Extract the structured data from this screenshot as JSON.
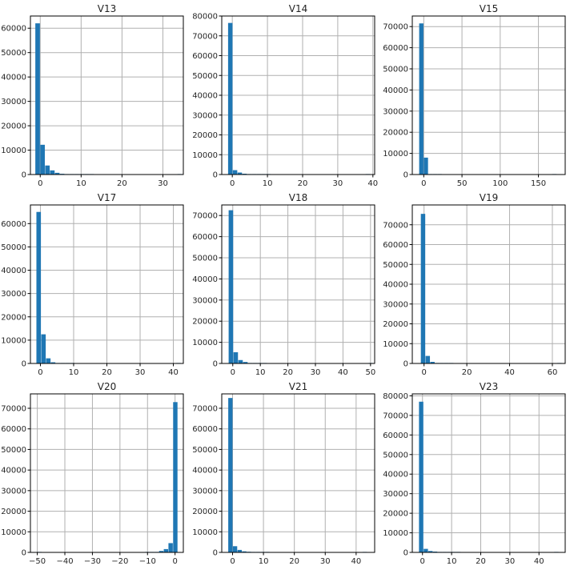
{
  "chart_data": [
    {
      "type": "bar",
      "title": "V13",
      "xlim": [
        -2.4,
        35
      ],
      "ylim": [
        0,
        65000
      ],
      "xticks": [
        0,
        10,
        20,
        30
      ],
      "yticks": [
        0,
        10000,
        20000,
        30000,
        40000,
        50000,
        60000
      ],
      "bin_start": -1.2,
      "bin_width": 1.2,
      "values": [
        62000,
        12200,
        3700,
        1700,
        700,
        300,
        100,
        50,
        20,
        10,
        5,
        5,
        0,
        0,
        0,
        0,
        0,
        0,
        0,
        0,
        0,
        0,
        0,
        0,
        0,
        0,
        0,
        0,
        0,
        1
      ],
      "grid": true
    },
    {
      "type": "bar",
      "title": "V14",
      "xlim": [
        -3,
        40.5
      ],
      "ylim": [
        0,
        80000
      ],
      "xticks": [
        0,
        10,
        20,
        30,
        40
      ],
      "yticks": [
        0,
        10000,
        20000,
        30000,
        40000,
        50000,
        60000,
        70000,
        80000
      ],
      "bin_start": -1.2,
      "bin_width": 1.35,
      "values": [
        76500,
        2200,
        1000,
        400,
        100,
        40,
        20,
        10,
        5,
        0,
        0,
        0,
        0,
        0,
        0,
        0,
        0,
        0,
        0,
        0,
        0,
        0,
        0,
        0,
        0,
        0,
        0,
        0,
        0,
        1
      ],
      "grid": true
    },
    {
      "type": "bar",
      "title": "V15",
      "xlim": [
        -15,
        185
      ],
      "ylim": [
        0,
        75000
      ],
      "xticks": [
        0,
        50,
        100,
        150
      ],
      "yticks": [
        0,
        10000,
        20000,
        30000,
        40000,
        50000,
        60000,
        70000
      ],
      "bin_start": -6,
      "bin_width": 6,
      "values": [
        71500,
        8000,
        150,
        20,
        5,
        0,
        0,
        0,
        0,
        0,
        0,
        0,
        0,
        0,
        0,
        0,
        0,
        0,
        0,
        0,
        0,
        0,
        0,
        0,
        0,
        0,
        0,
        0,
        0,
        1
      ],
      "grid": true
    },
    {
      "type": "bar",
      "title": "V17",
      "xlim": [
        -3,
        43
      ],
      "ylim": [
        0,
        68000
      ],
      "xticks": [
        0,
        10,
        20,
        30,
        40
      ],
      "yticks": [
        0,
        10000,
        20000,
        30000,
        40000,
        50000,
        60000
      ],
      "bin_start": -1.2,
      "bin_width": 1.45,
      "values": [
        65000,
        12500,
        2200,
        500,
        150,
        50,
        20,
        10,
        0,
        0,
        0,
        0,
        0,
        0,
        0,
        0,
        0,
        0,
        0,
        0,
        0,
        0,
        0,
        0,
        0,
        0,
        0,
        0,
        0,
        1
      ],
      "grid": true
    },
    {
      "type": "bar",
      "title": "V18",
      "xlim": [
        -4,
        51.5
      ],
      "ylim": [
        0,
        75000
      ],
      "xticks": [
        0,
        10,
        20,
        30,
        40,
        50
      ],
      "yticks": [
        0,
        10000,
        20000,
        30000,
        40000,
        50000,
        60000,
        70000
      ],
      "bin_start": -1.5,
      "bin_width": 1.75,
      "values": [
        72500,
        5300,
        1600,
        700,
        200,
        60,
        20,
        10,
        0,
        0,
        0,
        0,
        0,
        0,
        0,
        0,
        0,
        0,
        0,
        0,
        0,
        0,
        0,
        0,
        0,
        0,
        0,
        0,
        0,
        1
      ],
      "grid": true
    },
    {
      "type": "bar",
      "title": "V19",
      "xlim": [
        -5.5,
        66
      ],
      "ylim": [
        0,
        80000
      ],
      "xticks": [
        0,
        20,
        40,
        60
      ],
      "yticks": [
        0,
        10000,
        20000,
        30000,
        40000,
        50000,
        60000,
        70000
      ],
      "bin_start": -1.5,
      "bin_width": 2.2,
      "values": [
        75500,
        3800,
        800,
        250,
        60,
        20,
        10,
        0,
        0,
        0,
        0,
        0,
        0,
        0,
        0,
        0,
        0,
        0,
        0,
        0,
        0,
        0,
        0,
        0,
        0,
        0,
        0,
        0,
        0,
        1
      ],
      "grid": true
    },
    {
      "type": "bar",
      "title": "V20",
      "xlim": [
        -52.5,
        3
      ],
      "ylim": [
        0,
        77000
      ],
      "xticks": [
        -50,
        -40,
        -30,
        -20,
        -10,
        0
      ],
      "yticks": [
        0,
        10000,
        20000,
        30000,
        40000,
        50000,
        60000,
        70000
      ],
      "bin_start": -50,
      "bin_width": 1.7,
      "values": [
        5,
        0,
        0,
        0,
        0,
        0,
        0,
        0,
        0,
        0,
        0,
        0,
        0,
        0,
        0,
        0,
        0,
        0,
        0,
        0,
        0,
        0,
        0,
        10,
        50,
        200,
        700,
        1600,
        4500,
        73000
      ],
      "grid": true
    },
    {
      "type": "bar",
      "title": "V21",
      "xlim": [
        -3.5,
        46
      ],
      "ylim": [
        0,
        77000
      ],
      "xticks": [
        0,
        10,
        20,
        30,
        40
      ],
      "yticks": [
        0,
        10000,
        20000,
        30000,
        40000,
        50000,
        60000,
        70000
      ],
      "bin_start": -1.4,
      "bin_width": 1.5,
      "values": [
        75000,
        3000,
        1200,
        500,
        300,
        150,
        60,
        20,
        10,
        0,
        0,
        0,
        0,
        0,
        0,
        0,
        0,
        0,
        0,
        0,
        0,
        0,
        0,
        0,
        0,
        0,
        0,
        0,
        0,
        1
      ],
      "grid": true
    },
    {
      "type": "bar",
      "title": "V23",
      "xlim": [
        -3.5,
        49
      ],
      "ylim": [
        0,
        81000
      ],
      "xticks": [
        0,
        10,
        20,
        30,
        40
      ],
      "yticks": [
        0,
        10000,
        20000,
        30000,
        40000,
        50000,
        60000,
        70000,
        80000
      ],
      "bin_start": -1.2,
      "bin_width": 1.6,
      "values": [
        77000,
        1800,
        700,
        400,
        200,
        60,
        20,
        10,
        5,
        0,
        0,
        0,
        0,
        0,
        0,
        0,
        0,
        0,
        0,
        0,
        0,
        0,
        0,
        0,
        0,
        0,
        0,
        0,
        0,
        1
      ],
      "grid": true
    }
  ],
  "colors": {
    "bar": "#1f77b4",
    "bar_edge": "#1f77b4",
    "grid": "#b0b0b0",
    "axes_edge": "#000000",
    "text": "#262626",
    "background": "#ffffff"
  }
}
